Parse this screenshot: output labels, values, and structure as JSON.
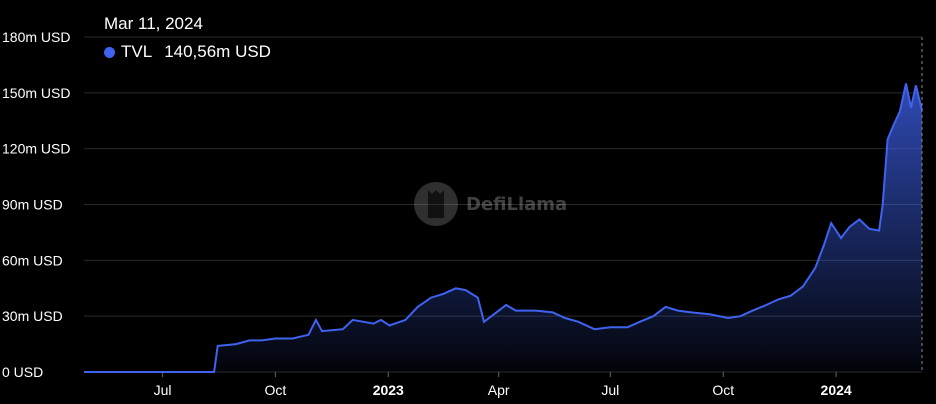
{
  "tooltip": {
    "date": "Mar 11, 2024",
    "series_name": "TVL",
    "value_text": "140,56m USD"
  },
  "watermark": {
    "text": "DefiLlama"
  },
  "colors": {
    "line": "#3f63f0",
    "background": "#000000",
    "grid": "#2a2a2a",
    "tick_text": "#ffffff"
  },
  "chart_data": {
    "type": "area",
    "ylabel": "",
    "xlabel": "",
    "ylim": [
      0,
      180
    ],
    "xlim": [
      "2022-04-28",
      "2024-03-11"
    ],
    "grid": true,
    "y_ticks": [
      {
        "value": 0,
        "label": "0 USD"
      },
      {
        "value": 30,
        "label": "30m USD"
      },
      {
        "value": 60,
        "label": "60m USD"
      },
      {
        "value": 90,
        "label": "90m USD"
      },
      {
        "value": 120,
        "label": "120m USD"
      },
      {
        "value": 150,
        "label": "150m USD"
      },
      {
        "value": 180,
        "label": "180m USD"
      }
    ],
    "x_ticks": [
      {
        "date": "2022-07-01",
        "label": "Jul",
        "bold": false
      },
      {
        "date": "2022-10-01",
        "label": "Oct",
        "bold": false
      },
      {
        "date": "2023-01-01",
        "label": "2023",
        "bold": true
      },
      {
        "date": "2023-04-01",
        "label": "Apr",
        "bold": false
      },
      {
        "date": "2023-07-01",
        "label": "Jul",
        "bold": false
      },
      {
        "date": "2023-10-01",
        "label": "Oct",
        "bold": false
      },
      {
        "date": "2024-01-01",
        "label": "2024",
        "bold": true
      }
    ],
    "series": [
      {
        "name": "TVL",
        "points": [
          [
            "2022-04-28",
            0
          ],
          [
            "2022-08-12",
            0
          ],
          [
            "2022-08-15",
            14
          ],
          [
            "2022-08-30",
            15
          ],
          [
            "2022-09-10",
            17
          ],
          [
            "2022-09-20",
            17
          ],
          [
            "2022-10-01",
            18
          ],
          [
            "2022-10-15",
            18
          ],
          [
            "2022-10-28",
            20
          ],
          [
            "2022-11-03",
            28
          ],
          [
            "2022-11-08",
            22
          ],
          [
            "2022-11-25",
            23
          ],
          [
            "2022-12-03",
            28
          ],
          [
            "2022-12-12",
            27
          ],
          [
            "2022-12-20",
            26
          ],
          [
            "2022-12-26",
            28
          ],
          [
            "2023-01-02",
            25
          ],
          [
            "2023-01-15",
            28
          ],
          [
            "2023-01-25",
            35
          ],
          [
            "2023-02-05",
            40
          ],
          [
            "2023-02-15",
            42
          ],
          [
            "2023-02-25",
            45
          ],
          [
            "2023-03-05",
            44
          ],
          [
            "2023-03-15",
            40
          ],
          [
            "2023-03-20",
            27
          ],
          [
            "2023-03-30",
            32
          ],
          [
            "2023-04-07",
            36
          ],
          [
            "2023-04-15",
            33
          ],
          [
            "2023-05-01",
            33
          ],
          [
            "2023-05-15",
            32
          ],
          [
            "2023-05-25",
            29
          ],
          [
            "2023-06-05",
            27
          ],
          [
            "2023-06-18",
            23
          ],
          [
            "2023-07-01",
            24
          ],
          [
            "2023-07-15",
            24
          ],
          [
            "2023-07-25",
            27
          ],
          [
            "2023-08-05",
            30
          ],
          [
            "2023-08-15",
            35
          ],
          [
            "2023-08-25",
            33
          ],
          [
            "2023-09-05",
            32
          ],
          [
            "2023-09-20",
            31
          ],
          [
            "2023-10-05",
            29
          ],
          [
            "2023-10-15",
            30
          ],
          [
            "2023-10-25",
            33
          ],
          [
            "2023-11-05",
            36
          ],
          [
            "2023-11-15",
            39
          ],
          [
            "2023-11-25",
            41
          ],
          [
            "2023-12-05",
            46
          ],
          [
            "2023-12-15",
            56
          ],
          [
            "2023-12-22",
            68
          ],
          [
            "2023-12-28",
            80
          ],
          [
            "2024-01-05",
            72
          ],
          [
            "2024-01-12",
            78
          ],
          [
            "2024-01-20",
            82
          ],
          [
            "2024-01-28",
            77
          ],
          [
            "2024-02-05",
            76
          ],
          [
            "2024-02-08",
            90
          ],
          [
            "2024-02-12",
            125
          ],
          [
            "2024-02-17",
            133
          ],
          [
            "2024-02-22",
            140
          ],
          [
            "2024-02-27",
            155
          ],
          [
            "2024-03-02",
            142
          ],
          [
            "2024-03-06",
            154
          ],
          [
            "2024-03-11",
            140.56
          ]
        ]
      }
    ]
  }
}
